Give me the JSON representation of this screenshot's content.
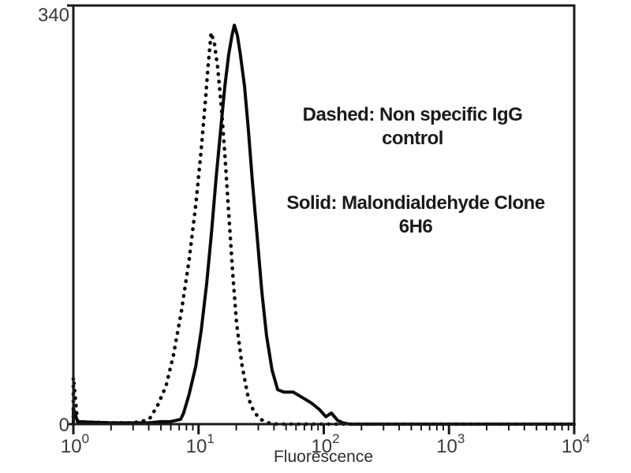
{
  "colors": {
    "background": "#ffffff",
    "curve": "#0a0a0a",
    "axis": "#1a1a1a",
    "tick_text": "#3a3a3a",
    "annotation_text": "#1a1a1a"
  },
  "chart_data": {
    "type": "line",
    "subtype": "flow-cytometry-histogram",
    "title": "",
    "xlabel": "Fluorescence",
    "ylabel": "",
    "x_scale": "log10",
    "x_range": [
      1,
      10000
    ],
    "x_tick_exponents": [
      0,
      1,
      2,
      3,
      4
    ],
    "x_tick_labels": [
      "10^0",
      "10^1",
      "10^2",
      "10^3",
      "10^4"
    ],
    "y_range": [
      0,
      340
    ],
    "y_ticks": [
      0,
      340
    ],
    "y_tick_labels": [
      "0",
      "340"
    ],
    "grid": false,
    "legend_position": "in-plot-text",
    "annotations": {
      "dashed_line1": "Dashed: Non specific IgG",
      "dashed_line2": "control",
      "solid_line1": "Solid: Malondialdehyde Clone",
      "solid_line2": "6H6"
    },
    "series": [
      {
        "name": "Non specific IgG control",
        "style": "dashed",
        "peak_x": 12.6,
        "peak_y": 318,
        "points": [
          [
            1,
            0
          ],
          [
            1,
            38
          ],
          [
            1.08,
            2
          ],
          [
            2,
            1
          ],
          [
            3,
            1
          ],
          [
            3.8,
            3
          ],
          [
            4.1,
            5
          ],
          [
            4.7,
            15
          ],
          [
            5.5,
            31
          ],
          [
            6.3,
            56
          ],
          [
            7.3,
            92
          ],
          [
            8.4,
            133
          ],
          [
            9.5,
            178
          ],
          [
            10.5,
            223
          ],
          [
            11.3,
            261
          ],
          [
            11.9,
            290
          ],
          [
            12.6,
            318
          ],
          [
            13.4,
            309
          ],
          [
            14.2,
            290
          ],
          [
            15.1,
            261
          ],
          [
            16.2,
            220
          ],
          [
            17.4,
            172
          ],
          [
            18.7,
            124
          ],
          [
            20.1,
            82
          ],
          [
            22.3,
            47
          ],
          [
            25,
            21
          ],
          [
            27.7,
            10
          ],
          [
            31.1,
            4
          ],
          [
            36,
            1
          ],
          [
            42,
            0
          ],
          [
            10000,
            0
          ]
        ]
      },
      {
        "name": "Malondialdehyde Clone 6H6",
        "style": "solid",
        "peak_x": 19.3,
        "peak_y": 324,
        "points": [
          [
            1,
            0
          ],
          [
            1,
            13
          ],
          [
            1.08,
            2
          ],
          [
            2,
            1
          ],
          [
            3,
            1
          ],
          [
            4,
            1
          ],
          [
            5,
            2
          ],
          [
            5.9,
            2
          ],
          [
            6.6,
            3
          ],
          [
            7.2,
            4
          ],
          [
            7.6,
            9
          ],
          [
            8.4,
            24
          ],
          [
            9.5,
            47
          ],
          [
            10.5,
            76
          ],
          [
            11.6,
            114
          ],
          [
            12.7,
            156
          ],
          [
            13.8,
            200
          ],
          [
            15.1,
            242
          ],
          [
            16.2,
            274
          ],
          [
            17.4,
            300
          ],
          [
            18.5,
            316
          ],
          [
            19.3,
            324
          ],
          [
            20.4,
            316
          ],
          [
            21.6,
            300
          ],
          [
            23.3,
            274
          ],
          [
            25,
            239
          ],
          [
            26.9,
            197
          ],
          [
            29.4,
            152
          ],
          [
            32,
            108
          ],
          [
            34.9,
            72
          ],
          [
            38.6,
            44
          ],
          [
            42.8,
            28
          ],
          [
            48,
            26
          ],
          [
            57,
            26
          ],
          [
            69,
            21
          ],
          [
            80,
            17
          ],
          [
            92,
            12
          ],
          [
            104,
            6
          ],
          [
            115,
            9
          ],
          [
            129,
            3
          ],
          [
            143,
            1
          ],
          [
            160,
            0
          ],
          [
            10000,
            0
          ]
        ]
      }
    ]
  }
}
